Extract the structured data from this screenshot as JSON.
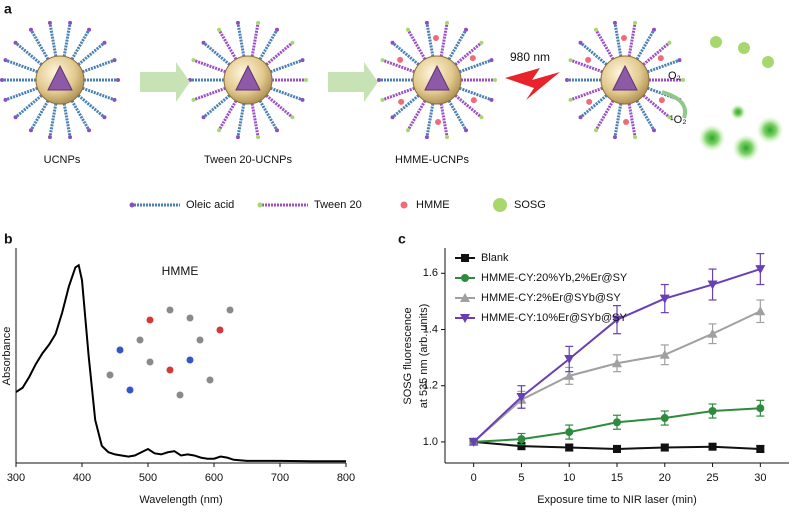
{
  "panel_a": {
    "label": "a",
    "particles": [
      "UCNPs",
      "Tween 20-UCNPs",
      "HMME-UCNPs"
    ],
    "laser": "980 nm",
    "oxygen": "O₂",
    "singlet_oxygen": "¹O₂",
    "legend": [
      "Oleic acid",
      "Tween 20",
      "HMME",
      "SOSG"
    ]
  },
  "chart_data": [
    {
      "type": "line",
      "panel": "b",
      "annotation": "HMME",
      "xlabel": "Wavelength (nm)",
      "ylabel": "Absorbance",
      "x": [
        300,
        310,
        320,
        330,
        340,
        350,
        360,
        370,
        380,
        390,
        395,
        400,
        410,
        420,
        430,
        440,
        450,
        460,
        470,
        480,
        490,
        500,
        510,
        520,
        530,
        540,
        550,
        560,
        570,
        580,
        590,
        600,
        610,
        620,
        630,
        650,
        700,
        750,
        800
      ],
      "values": [
        0.33,
        0.35,
        0.4,
        0.46,
        0.51,
        0.55,
        0.6,
        0.7,
        0.82,
        0.91,
        0.92,
        0.85,
        0.5,
        0.2,
        0.08,
        0.05,
        0.04,
        0.035,
        0.03,
        0.035,
        0.05,
        0.065,
        0.045,
        0.04,
        0.05,
        0.055,
        0.035,
        0.04,
        0.035,
        0.025,
        0.02,
        0.02,
        0.03,
        0.025,
        0.015,
        0.01,
        0.01,
        0.008,
        0.008
      ],
      "color": "#000000",
      "xlim": [
        300,
        800
      ],
      "ylim": [
        0,
        1
      ],
      "xticks": [
        300,
        400,
        500,
        600,
        700,
        800
      ]
    },
    {
      "type": "line",
      "panel": "c",
      "xlabel": "Exposure time to NIR laser (min)",
      "ylabel": [
        "SOSG fluorescence",
        "at 535 nm (arb. units)"
      ],
      "x": [
        0,
        5,
        10,
        15,
        20,
        25,
        30
      ],
      "series": [
        {
          "name": "Blank",
          "color": "#111111",
          "marker": "square",
          "values": [
            1.0,
            0.985,
            0.98,
            0.975,
            0.98,
            0.983,
            0.975
          ],
          "errors": [
            0.008,
            0.012,
            0.012,
            0.012,
            0.012,
            0.01,
            0.012
          ]
        },
        {
          "name": "HMME-CY:20%Yb,2%Er@SY",
          "color": "#2e8b3e",
          "marker": "circle",
          "values": [
            1.0,
            1.01,
            1.035,
            1.07,
            1.085,
            1.11,
            1.12
          ],
          "errors": [
            0.008,
            0.02,
            0.025,
            0.025,
            0.025,
            0.025,
            0.028
          ]
        },
        {
          "name": "HMME-CY:2%Er@SYb@SY",
          "color": "#a0a0a0",
          "marker": "triangle-up",
          "values": [
            1.0,
            1.15,
            1.235,
            1.28,
            1.31,
            1.385,
            1.465
          ],
          "errors": [
            0.008,
            0.03,
            0.03,
            0.03,
            0.035,
            0.035,
            0.04
          ]
        },
        {
          "name": "HMME-CY:10%Er@SYb@SY",
          "color": "#6a3fb5",
          "marker": "triangle-down",
          "values": [
            1.0,
            1.16,
            1.295,
            1.435,
            1.51,
            1.56,
            1.615
          ],
          "errors": [
            0.008,
            0.04,
            0.045,
            0.05,
            0.05,
            0.055,
            0.055
          ]
        }
      ],
      "xlim": [
        -3,
        33
      ],
      "ylim": [
        0.925,
        1.69
      ],
      "xticks": [
        0,
        5,
        10,
        15,
        20,
        25,
        30
      ],
      "yticks": [
        {
          "value": 1.0,
          "label": "1.0"
        },
        1.2,
        1.4,
        1.6
      ],
      "legend": "upper left"
    }
  ]
}
